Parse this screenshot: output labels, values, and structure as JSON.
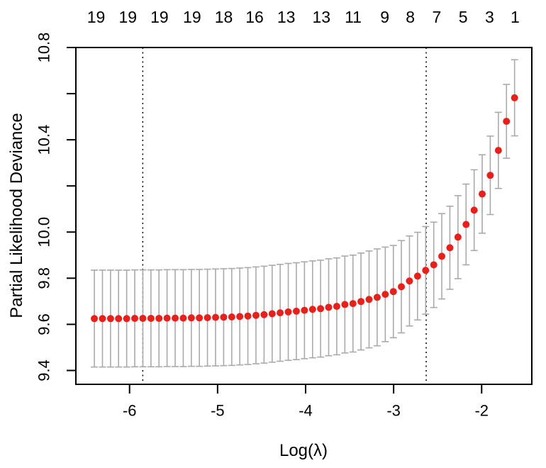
{
  "chart_data": {
    "type": "scatter",
    "title": "",
    "xlabel": "Log(λ)",
    "ylabel": "Partial Likelihood Deviance",
    "xlim": [
      -6.61,
      -1.43
    ],
    "ylim": [
      9.34,
      10.8
    ],
    "grid": false,
    "legend": "none",
    "point_color": "#e8201c",
    "errorbar_color": "#aaaaaa",
    "axis_color": "#000000",
    "vline_color": "#000000",
    "x_ticks": [
      {
        "v": -6,
        "label": "-6"
      },
      {
        "v": -5,
        "label": "-5"
      },
      {
        "v": -4,
        "label": "-4"
      },
      {
        "v": -3,
        "label": "-3"
      },
      {
        "v": -2,
        "label": "-2"
      }
    ],
    "y_ticks": [
      {
        "v": 9.4,
        "label": "9.4"
      },
      {
        "v": 9.6,
        "label": "9.6"
      },
      {
        "v": 9.8,
        "label": "9.8"
      },
      {
        "v": 10.0,
        "label": "10.0"
      },
      {
        "v": 10.2,
        "label": ""
      },
      {
        "v": 10.4,
        "label": "10.4"
      },
      {
        "v": 10.6,
        "label": ""
      },
      {
        "v": 10.8,
        "label": "10.8"
      }
    ],
    "top_axis_ticks": [
      {
        "v": -6.38,
        "label": "19"
      },
      {
        "v": -6.02,
        "label": "19"
      },
      {
        "v": -5.66,
        "label": "19"
      },
      {
        "v": -5.29,
        "label": "19"
      },
      {
        "v": -4.93,
        "label": "18"
      },
      {
        "v": -4.58,
        "label": "16"
      },
      {
        "v": -4.22,
        "label": "13"
      },
      {
        "v": -3.82,
        "label": "13"
      },
      {
        "v": -3.46,
        "label": "11"
      },
      {
        "v": -3.1,
        "label": "9"
      },
      {
        "v": -2.81,
        "label": "8"
      },
      {
        "v": -2.51,
        "label": "7"
      },
      {
        "v": -2.21,
        "label": "5"
      },
      {
        "v": -1.91,
        "label": "3"
      },
      {
        "v": -1.62,
        "label": "1"
      }
    ],
    "vlines": [
      {
        "v": -5.85,
        "style": "dotted",
        "name": "lambda-min-line"
      },
      {
        "v": -2.63,
        "style": "dotted",
        "name": "lambda-1se-line"
      }
    ],
    "series": [
      {
        "name": "cv-mean-partial-likelihood-deviance",
        "x": [
          -6.4,
          -6.308,
          -6.216,
          -6.125,
          -6.033,
          -5.941,
          -5.849,
          -5.757,
          -5.666,
          -5.574,
          -5.482,
          -5.39,
          -5.298,
          -5.207,
          -5.115,
          -5.023,
          -4.931,
          -4.839,
          -4.748,
          -4.656,
          -4.564,
          -4.472,
          -4.38,
          -4.289,
          -4.197,
          -4.105,
          -4.013,
          -3.921,
          -3.83,
          -3.738,
          -3.646,
          -3.554,
          -3.462,
          -3.371,
          -3.279,
          -3.187,
          -3.095,
          -3.003,
          -2.912,
          -2.82,
          -2.728,
          -2.636,
          -2.544,
          -2.453,
          -2.361,
          -2.269,
          -2.177,
          -2.085,
          -1.994,
          -1.902,
          -1.81,
          -1.718,
          -1.626
        ],
        "y": [
          9.625,
          9.625,
          9.625,
          9.625,
          9.625,
          9.626,
          9.626,
          9.626,
          9.626,
          9.627,
          9.627,
          9.627,
          9.628,
          9.628,
          9.629,
          9.63,
          9.631,
          9.632,
          9.634,
          9.636,
          9.639,
          9.642,
          9.646,
          9.65,
          9.654,
          9.657,
          9.661,
          9.665,
          9.668,
          9.674,
          9.678,
          9.686,
          9.69,
          9.699,
          9.708,
          9.717,
          9.73,
          9.742,
          9.763,
          9.788,
          9.809,
          9.834,
          9.858,
          9.895,
          9.932,
          9.978,
          10.033,
          10.095,
          10.165,
          10.246,
          10.354,
          10.48,
          10.582
        ],
        "y_upper": [
          9.835,
          9.835,
          9.835,
          9.835,
          9.835,
          9.836,
          9.836,
          9.836,
          9.836,
          9.837,
          9.837,
          9.837,
          9.838,
          9.838,
          9.839,
          9.84,
          9.841,
          9.842,
          9.844,
          9.846,
          9.849,
          9.852,
          9.856,
          9.86,
          9.864,
          9.867,
          9.871,
          9.875,
          9.878,
          9.884,
          9.888,
          9.896,
          9.9,
          9.909,
          9.918,
          9.927,
          9.935,
          9.942,
          9.963,
          9.983,
          9.999,
          10.024,
          10.043,
          10.08,
          10.112,
          10.158,
          10.208,
          10.27,
          10.335,
          10.416,
          10.519,
          10.64,
          10.747
        ],
        "y_lower": [
          9.415,
          9.415,
          9.415,
          9.415,
          9.415,
          9.416,
          9.416,
          9.416,
          9.416,
          9.417,
          9.417,
          9.417,
          9.418,
          9.418,
          9.419,
          9.42,
          9.421,
          9.422,
          9.424,
          9.426,
          9.429,
          9.432,
          9.436,
          9.44,
          9.444,
          9.447,
          9.451,
          9.455,
          9.458,
          9.464,
          9.468,
          9.476,
          9.48,
          9.489,
          9.498,
          9.507,
          9.525,
          9.542,
          9.563,
          9.593,
          9.619,
          9.644,
          9.673,
          9.71,
          9.752,
          9.798,
          9.858,
          9.92,
          9.995,
          10.076,
          10.189,
          10.32,
          10.417
        ]
      }
    ]
  }
}
